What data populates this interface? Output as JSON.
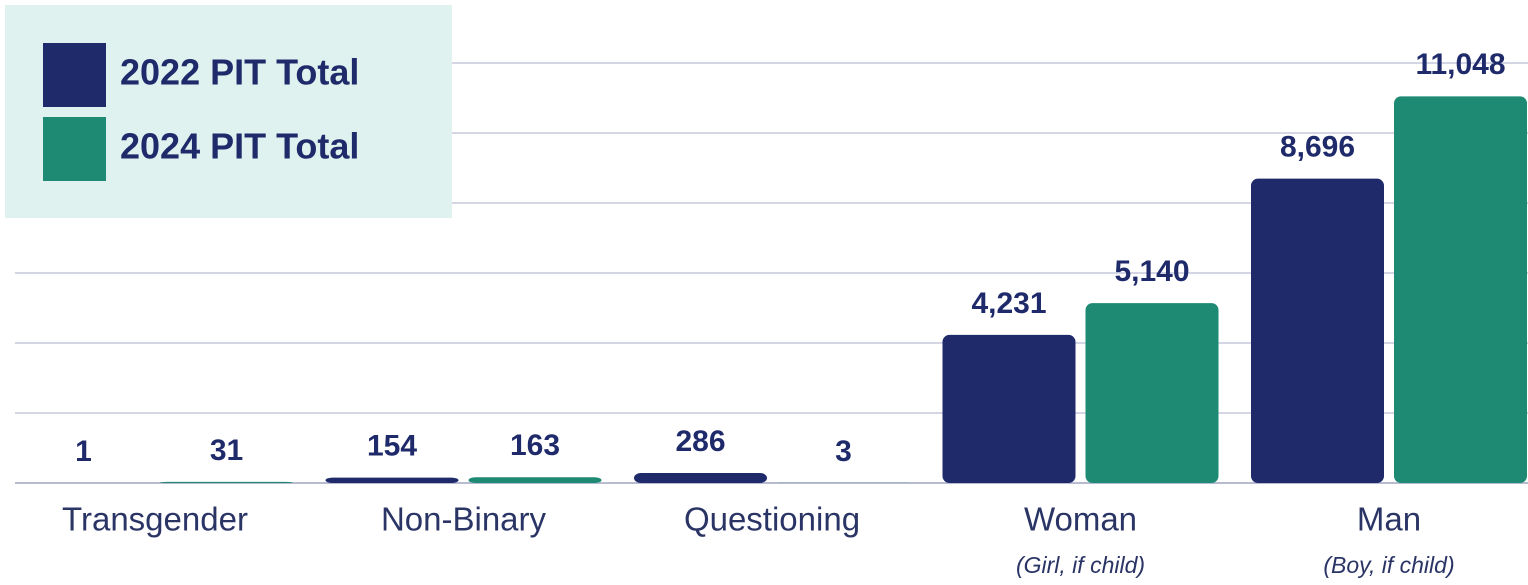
{
  "chart_data": {
    "type": "bar",
    "categories": [
      "Transgender",
      "Non-Binary",
      "Questioning",
      "Woman",
      "Man"
    ],
    "category_notes": [
      null,
      null,
      null,
      "(Girl, if child)",
      "(Boy, if child)"
    ],
    "series": [
      {
        "name": "2022 PIT Total",
        "color": "#1f2a6b",
        "values": [
          1,
          154,
          286,
          4231,
          8696
        ],
        "value_labels": [
          "1",
          "154",
          "286",
          "4,231",
          "8,696"
        ]
      },
      {
        "name": "2024 PIT Total",
        "color": "#1e8a74",
        "values": [
          31,
          163,
          3,
          5140,
          11048
        ],
        "value_labels": [
          "31",
          "163",
          "3",
          "5,140",
          "11,048"
        ]
      }
    ],
    "ylim": [
      0,
      12000
    ],
    "yticks": [
      0,
      2000,
      4000,
      6000,
      8000,
      10000,
      12000
    ],
    "grid": true,
    "legend": "upper left"
  }
}
